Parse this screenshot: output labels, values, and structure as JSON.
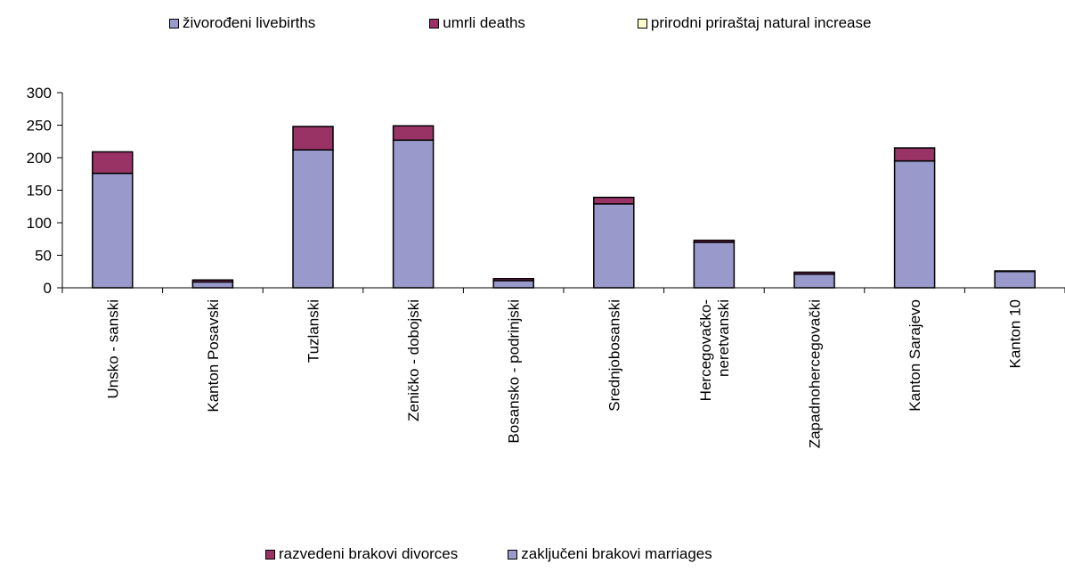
{
  "chart_data": {
    "type": "bar",
    "stacked": true,
    "categories": [
      "Unsko - sanski",
      "Kanton Posavski",
      "Tuzlanski",
      "Zeničko - dobojski",
      "Bosansko - podrinjski",
      "Srednjobosanski",
      "Hercegovačko-\nneretvanski",
      "Zapadnohercegovački",
      "Kanton Sarajevo",
      "Kanton 10"
    ],
    "series": [
      {
        "name": "zaključeni brakovi marriages",
        "color": "#9999cc",
        "values": [
          176,
          9,
          212,
          227,
          11,
          129,
          70,
          21,
          195,
          25
        ]
      },
      {
        "name": "razvedeni brakovi divorces",
        "color": "#993366",
        "values": [
          33,
          3,
          36,
          22,
          3,
          10,
          3,
          3,
          20,
          1
        ]
      }
    ],
    "top_legend": [
      {
        "name": "živorođeni livebirths",
        "color": "#9999cc"
      },
      {
        "name": "umrli deaths",
        "color": "#993366"
      },
      {
        "name": "prirodni priraštaj natural increase",
        "color": "#ffffcc"
      }
    ],
    "bottom_legend": [
      {
        "name": "razvedeni brakovi divorces",
        "color": "#993366"
      },
      {
        "name": "zaključeni brakovi marriages",
        "color": "#9999cc"
      }
    ],
    "yticks": [
      "0",
      "50",
      "100",
      "150",
      "200",
      "250",
      "300"
    ],
    "ylim": [
      0,
      300
    ],
    "grid": false,
    "title": "",
    "xlabel": "",
    "ylabel": ""
  }
}
